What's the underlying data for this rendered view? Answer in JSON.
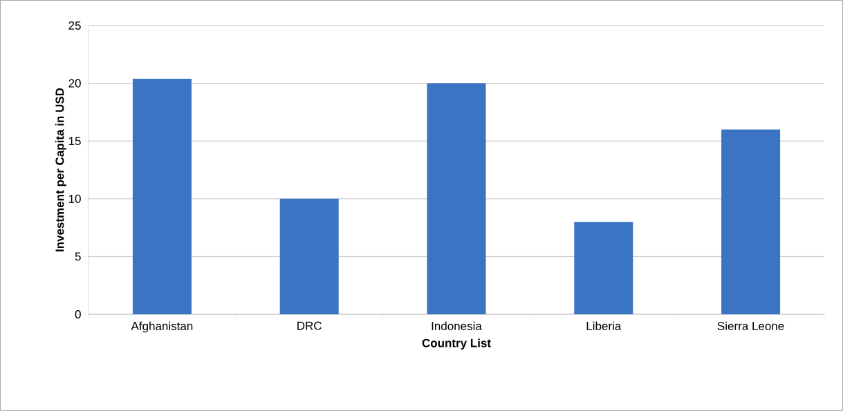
{
  "chart_data": {
    "type": "bar",
    "xlabel": "Country List",
    "ylabel": "Investment per Capita in USD",
    "categories": [
      "Afghanistan",
      "DRC",
      "Indonesia",
      "Liberia",
      "Sierra Leone"
    ],
    "values": [
      20.4,
      10,
      20,
      8,
      16
    ],
    "color": "#3a74c2",
    "ylim": [
      0,
      25
    ],
    "yticks": [
      0,
      5,
      10,
      15,
      20,
      25
    ],
    "grid": "y"
  }
}
